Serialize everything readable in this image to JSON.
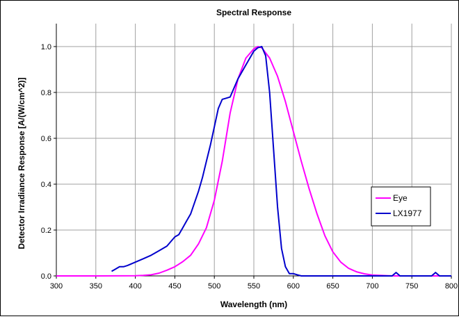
{
  "chart_data": {
    "type": "line",
    "title": "Spectral Response",
    "xlabel": "Wavelength (nm)",
    "ylabel": "Detector Irradiance Response [A/(W/cm^2)]",
    "xlim": [
      300,
      800
    ],
    "ylim": [
      0,
      1.1
    ],
    "x_ticks": [
      "300",
      "350",
      "400",
      "450",
      "500",
      "550",
      "600",
      "650",
      "700",
      "750",
      "800"
    ],
    "y_ticks": [
      "0.0",
      "0.2",
      "0.4",
      "0.6",
      "0.8",
      "1.0"
    ],
    "grid": true,
    "plot_background": "#ffffff",
    "legend_position": "right",
    "series": [
      {
        "name": "Eye",
        "color": "#ff00ff",
        "x": [
          300,
          350,
          400,
          410,
          420,
          430,
          440,
          450,
          460,
          470,
          480,
          490,
          500,
          510,
          520,
          530,
          540,
          550,
          555,
          560,
          570,
          580,
          590,
          600,
          610,
          620,
          630,
          640,
          650,
          660,
          670,
          680,
          690,
          700,
          710,
          720,
          730,
          740,
          750,
          760,
          770,
          780,
          800
        ],
        "y": [
          0,
          0,
          0.001,
          0.002,
          0.005,
          0.012,
          0.025,
          0.04,
          0.062,
          0.09,
          0.14,
          0.21,
          0.33,
          0.5,
          0.71,
          0.86,
          0.95,
          0.99,
          1.0,
          0.995,
          0.95,
          0.87,
          0.76,
          0.63,
          0.5,
          0.38,
          0.27,
          0.175,
          0.105,
          0.06,
          0.033,
          0.018,
          0.009,
          0.004,
          0.002,
          0.001,
          0,
          0,
          0,
          0,
          0,
          0,
          0
        ]
      },
      {
        "name": "LX1977",
        "color": "#0000cc",
        "x": [
          370,
          375,
          380,
          385,
          390,
          400,
          410,
          420,
          430,
          440,
          450,
          455,
          460,
          465,
          470,
          475,
          480,
          485,
          490,
          495,
          500,
          505,
          510,
          515,
          520,
          525,
          530,
          540,
          550,
          555,
          560,
          565,
          570,
          575,
          580,
          585,
          590,
          595,
          600,
          605,
          610,
          700,
          725,
          730,
          735,
          775,
          780,
          785,
          800
        ],
        "y": [
          0.02,
          0.03,
          0.04,
          0.04,
          0.045,
          0.06,
          0.075,
          0.09,
          0.11,
          0.13,
          0.17,
          0.18,
          0.21,
          0.24,
          0.27,
          0.32,
          0.37,
          0.43,
          0.5,
          0.57,
          0.65,
          0.73,
          0.77,
          0.775,
          0.78,
          0.82,
          0.86,
          0.92,
          0.98,
          0.995,
          1.0,
          0.96,
          0.8,
          0.55,
          0.3,
          0.12,
          0.04,
          0.01,
          0.01,
          0.005,
          0,
          0,
          0,
          0.015,
          0,
          0,
          0.015,
          0,
          0
        ]
      }
    ]
  }
}
